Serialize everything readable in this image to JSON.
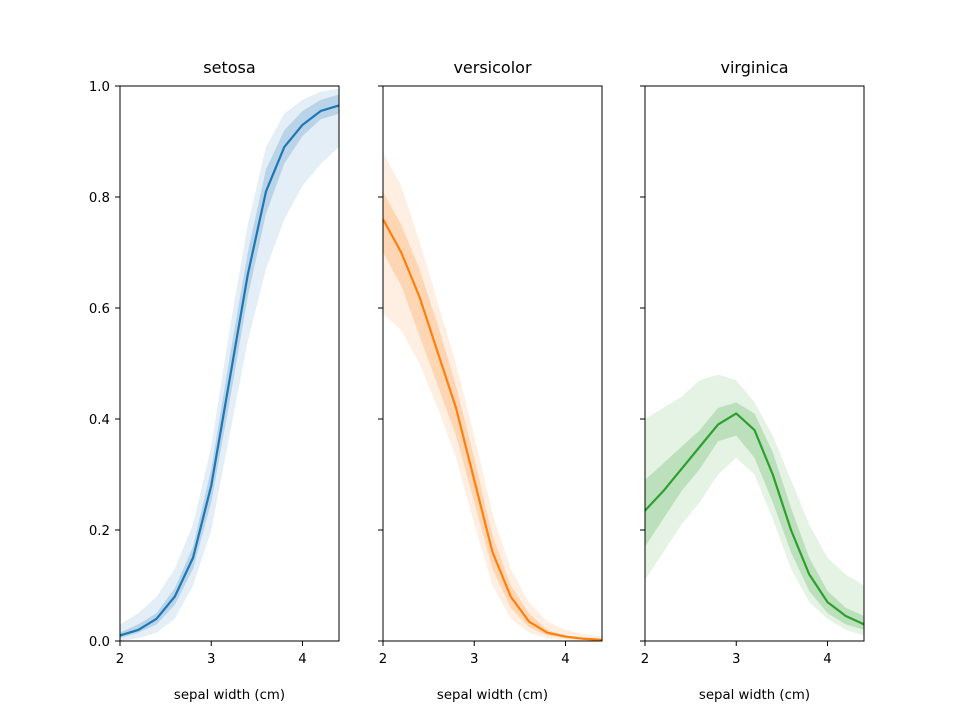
{
  "chart_data": {
    "type": "line",
    "xlabel": "sepal width (cm)",
    "ylabel": "",
    "xlim": [
      2.0,
      4.4
    ],
    "ylim": [
      0.0,
      1.0
    ],
    "xticks": [
      2,
      3,
      4
    ],
    "yticks": [
      0.0,
      0.2,
      0.4,
      0.6,
      0.8,
      1.0
    ],
    "ytick_labels": [
      "0.0",
      "0.2",
      "0.4",
      "0.6",
      "0.8",
      "1.0"
    ],
    "x": [
      2.0,
      2.2,
      2.4,
      2.6,
      2.8,
      3.0,
      3.2,
      3.4,
      3.6,
      3.8,
      4.0,
      4.2,
      4.4
    ],
    "panels": [
      {
        "title": "setosa",
        "color": "#1f77b4",
        "mean": [
          0.01,
          0.02,
          0.04,
          0.08,
          0.15,
          0.28,
          0.47,
          0.66,
          0.81,
          0.89,
          0.93,
          0.955,
          0.965
        ],
        "inner_lower": [
          0.005,
          0.015,
          0.03,
          0.065,
          0.13,
          0.25,
          0.43,
          0.62,
          0.77,
          0.86,
          0.91,
          0.94,
          0.95
        ],
        "inner_upper": [
          0.015,
          0.03,
          0.05,
          0.095,
          0.17,
          0.31,
          0.51,
          0.7,
          0.85,
          0.92,
          0.955,
          0.975,
          0.985
        ],
        "outer_lower": [
          0.0,
          0.005,
          0.015,
          0.04,
          0.1,
          0.2,
          0.37,
          0.54,
          0.67,
          0.76,
          0.82,
          0.86,
          0.89
        ],
        "outer_upper": [
          0.03,
          0.05,
          0.08,
          0.13,
          0.21,
          0.35,
          0.56,
          0.75,
          0.89,
          0.95,
          0.975,
          0.99,
          0.995
        ]
      },
      {
        "title": "versicolor",
        "color": "#ff7f0e",
        "mean": [
          0.76,
          0.7,
          0.62,
          0.52,
          0.42,
          0.29,
          0.16,
          0.08,
          0.035,
          0.015,
          0.008,
          0.004,
          0.002
        ],
        "inner_lower": [
          0.7,
          0.64,
          0.55,
          0.46,
          0.37,
          0.25,
          0.13,
          0.06,
          0.025,
          0.01,
          0.005,
          0.002,
          0.001
        ],
        "inner_upper": [
          0.81,
          0.75,
          0.67,
          0.57,
          0.46,
          0.33,
          0.19,
          0.1,
          0.05,
          0.02,
          0.01,
          0.006,
          0.004
        ],
        "outer_lower": [
          0.59,
          0.56,
          0.5,
          0.42,
          0.33,
          0.21,
          0.1,
          0.04,
          0.015,
          0.005,
          0.002,
          0.0,
          0.0
        ],
        "outer_upper": [
          0.88,
          0.82,
          0.72,
          0.61,
          0.5,
          0.37,
          0.23,
          0.13,
          0.07,
          0.035,
          0.02,
          0.012,
          0.008
        ]
      },
      {
        "title": "virginica",
        "color": "#2ca02c",
        "mean": [
          0.235,
          0.27,
          0.31,
          0.35,
          0.39,
          0.41,
          0.38,
          0.3,
          0.2,
          0.12,
          0.07,
          0.045,
          0.03
        ],
        "inner_lower": [
          0.17,
          0.22,
          0.27,
          0.31,
          0.36,
          0.37,
          0.33,
          0.25,
          0.16,
          0.09,
          0.05,
          0.03,
          0.02
        ],
        "inner_upper": [
          0.29,
          0.32,
          0.35,
          0.38,
          0.42,
          0.43,
          0.41,
          0.34,
          0.24,
          0.15,
          0.09,
          0.06,
          0.045
        ],
        "outer_lower": [
          0.11,
          0.16,
          0.21,
          0.25,
          0.3,
          0.33,
          0.3,
          0.22,
          0.13,
          0.07,
          0.04,
          0.02,
          0.01
        ],
        "outer_upper": [
          0.4,
          0.42,
          0.44,
          0.47,
          0.48,
          0.47,
          0.43,
          0.37,
          0.29,
          0.21,
          0.15,
          0.12,
          0.1
        ]
      }
    ]
  }
}
